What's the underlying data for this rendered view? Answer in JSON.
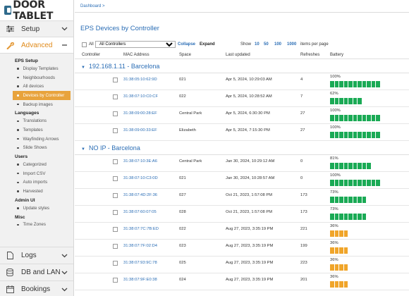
{
  "logo": {
    "text": "DOOR TABLET"
  },
  "sidebar": {
    "top_sections": [
      {
        "label": "Setup",
        "icon": "sliders-icon",
        "chevron": "⌄",
        "active": false
      },
      {
        "label": "Advanced",
        "icon": "wrench-icon",
        "chevron": "—",
        "active": true
      }
    ],
    "groups": [
      {
        "title": "EPS Setup",
        "items": [
          "Display Templates",
          "Neighbourhoods",
          "All devices",
          "Devices by Controller",
          "Backup images"
        ]
      },
      {
        "title": "Languages",
        "items": [
          "Translations",
          "Templates",
          "Wayfinding Arrows",
          "Slide Shows"
        ]
      },
      {
        "title": "Users",
        "items": [
          "Categorized",
          "Import CSV",
          "Auto imports",
          "Harvested"
        ]
      },
      {
        "title": "Admin UI",
        "items": [
          "Update styles"
        ]
      },
      {
        "title": "Misc",
        "items": [
          "Time Zones"
        ]
      }
    ],
    "active_item": "Devices by Controller",
    "bottom_sections": [
      {
        "label": "Logs",
        "icon": "document-icon"
      },
      {
        "label": "DB and LAN",
        "icon": "database-icon"
      },
      {
        "label": "Bookings",
        "icon": "calendar-icon"
      }
    ]
  },
  "breadcrumb": "Dashboard >",
  "page_title": "EPS Devices by Controller",
  "toolbar": {
    "all_label": "All",
    "controller_select": "All Controllers",
    "collapse": "Collapse",
    "expand": "Expand",
    "show_label": "Show",
    "page_sizes": [
      "10",
      "50",
      "100",
      "1000"
    ],
    "items_per_page": "items per page"
  },
  "columns": [
    "Controller",
    "MAC Address",
    "Space",
    "Last updated",
    "Refreshes",
    "Battery"
  ],
  "colors": {
    "accent": "#2a6db5",
    "battery_green": "#1aaa55",
    "battery_orange": "#f0a52a",
    "active_nav": "#e8a33c"
  },
  "groups": [
    {
      "name": "192.168.1.11 - Barcelona",
      "rows": [
        {
          "mac": "31:38:05:10:62:9D",
          "space": "021",
          "updated": "Apr 5, 2024, 10:29:03 AM",
          "refreshes": "4",
          "battery": "100%",
          "level": 1.0,
          "color": "green"
        },
        {
          "mac": "31:38:07:10:C0:CF",
          "space": "022",
          "updated": "Apr 5, 2024, 10:28:52 AM",
          "refreshes": "7",
          "battery": "62%",
          "level": 0.62,
          "color": "green"
        },
        {
          "mac": "31:38:09:00:28:EF",
          "space": "Central Park",
          "updated": "Apr 5, 2024, 6:30:30 PM",
          "refreshes": "27",
          "battery": "100%",
          "level": 1.0,
          "color": "green"
        },
        {
          "mac": "31:38:09:00:33:EF",
          "space": "Elizabeth",
          "updated": "Apr 5, 2024, 7:15:30 PM",
          "refreshes": "27",
          "battery": "100%",
          "level": 1.0,
          "color": "green"
        }
      ]
    },
    {
      "name": "NO IP - Barcelona",
      "rows": [
        {
          "mac": "31:38:07:10:3E:A6",
          "space": "Central Park",
          "updated": "Jan 30, 2024, 10:29:12 AM",
          "refreshes": "0",
          "battery": "81%",
          "level": 0.81,
          "color": "green"
        },
        {
          "mac": "31:38:07:10:C3:0D",
          "space": "021",
          "updated": "Jan 30, 2024, 10:28:57 AM",
          "refreshes": "0",
          "battery": "100%",
          "level": 1.0,
          "color": "green"
        },
        {
          "mac": "31:38:07:4D:2F:36",
          "space": "027",
          "updated": "Oct 21, 2023, 1:57:08 PM",
          "refreshes": "173",
          "battery": "73%",
          "level": 0.73,
          "color": "green"
        },
        {
          "mac": "31:38:07:60:07:05",
          "space": "028",
          "updated": "Oct 21, 2023, 1:57:08 PM",
          "refreshes": "173",
          "battery": "73%",
          "level": 0.73,
          "color": "green"
        },
        {
          "mac": "31:38:07:7C:7B:ED",
          "space": "022",
          "updated": "Aug 27, 2023, 3:35:19 PM",
          "refreshes": "221",
          "battery": "36%",
          "level": 0.36,
          "color": "orange"
        },
        {
          "mac": "31:38:07:7F:02:D4",
          "space": "023",
          "updated": "Aug 27, 2023, 3:35:19 PM",
          "refreshes": "199",
          "battery": "36%",
          "level": 0.36,
          "color": "orange"
        },
        {
          "mac": "31:38:07:93:9C:78",
          "space": "025",
          "updated": "Aug 27, 2023, 3:35:19 PM",
          "refreshes": "223",
          "battery": "36%",
          "level": 0.36,
          "color": "orange"
        },
        {
          "mac": "31:38:07:9F:E0:38",
          "space": "024",
          "updated": "Aug 27, 2023, 3:35:19 PM",
          "refreshes": "201",
          "battery": "36%",
          "level": 0.36,
          "color": "orange"
        }
      ]
    }
  ]
}
